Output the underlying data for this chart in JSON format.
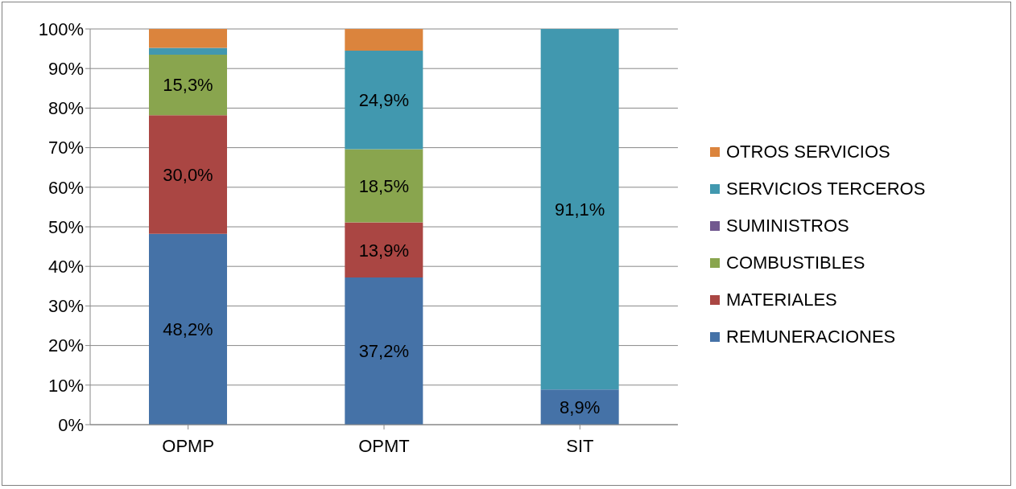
{
  "chart_data": {
    "type": "bar",
    "stacked": true,
    "categories": [
      "OPMP",
      "OPMT",
      "SIT"
    ],
    "series": [
      {
        "name": "REMUNERACIONES",
        "color": "#4572a7",
        "values": [
          48.2,
          37.2,
          8.9
        ],
        "value_labels": [
          "48,2%",
          "37,2%",
          "8,9%"
        ]
      },
      {
        "name": "MATERIALES",
        "color": "#aa4643",
        "values": [
          30.0,
          13.9,
          0
        ],
        "value_labels": [
          "30,0%",
          "13,9%",
          null
        ]
      },
      {
        "name": "COMBUSTIBLES",
        "color": "#89a54e",
        "values": [
          15.3,
          18.5,
          0
        ],
        "value_labels": [
          "15,3%",
          "18,5%",
          null
        ]
      },
      {
        "name": "SUMINISTROS",
        "color": "#71588f",
        "values": [
          0,
          0,
          0
        ],
        "value_labels": [
          null,
          null,
          null
        ]
      },
      {
        "name": "SERVICIOS TERCEROS",
        "color": "#4198af",
        "values": [
          1.7,
          24.9,
          91.1
        ],
        "value_labels": [
          null,
          "24,9%",
          "91,1%"
        ]
      },
      {
        "name": "OTROS SERVICIOS",
        "color": "#db843d",
        "values": [
          4.8,
          5.5,
          0
        ],
        "value_labels": [
          null,
          null,
          null
        ]
      }
    ],
    "ylim": [
      0,
      100
    ],
    "yticks": [
      {
        "value": 0,
        "label": "0%"
      },
      {
        "value": 10,
        "label": "10%"
      },
      {
        "value": 20,
        "label": "20%"
      },
      {
        "value": 30,
        "label": "30%"
      },
      {
        "value": 40,
        "label": "40%"
      },
      {
        "value": 50,
        "label": "50%"
      },
      {
        "value": 60,
        "label": "60%"
      },
      {
        "value": 70,
        "label": "70%"
      },
      {
        "value": 80,
        "label": "80%"
      },
      {
        "value": 90,
        "label": "90%"
      },
      {
        "value": 100,
        "label": "100%"
      }
    ],
    "grid": "y",
    "legend": "right"
  }
}
